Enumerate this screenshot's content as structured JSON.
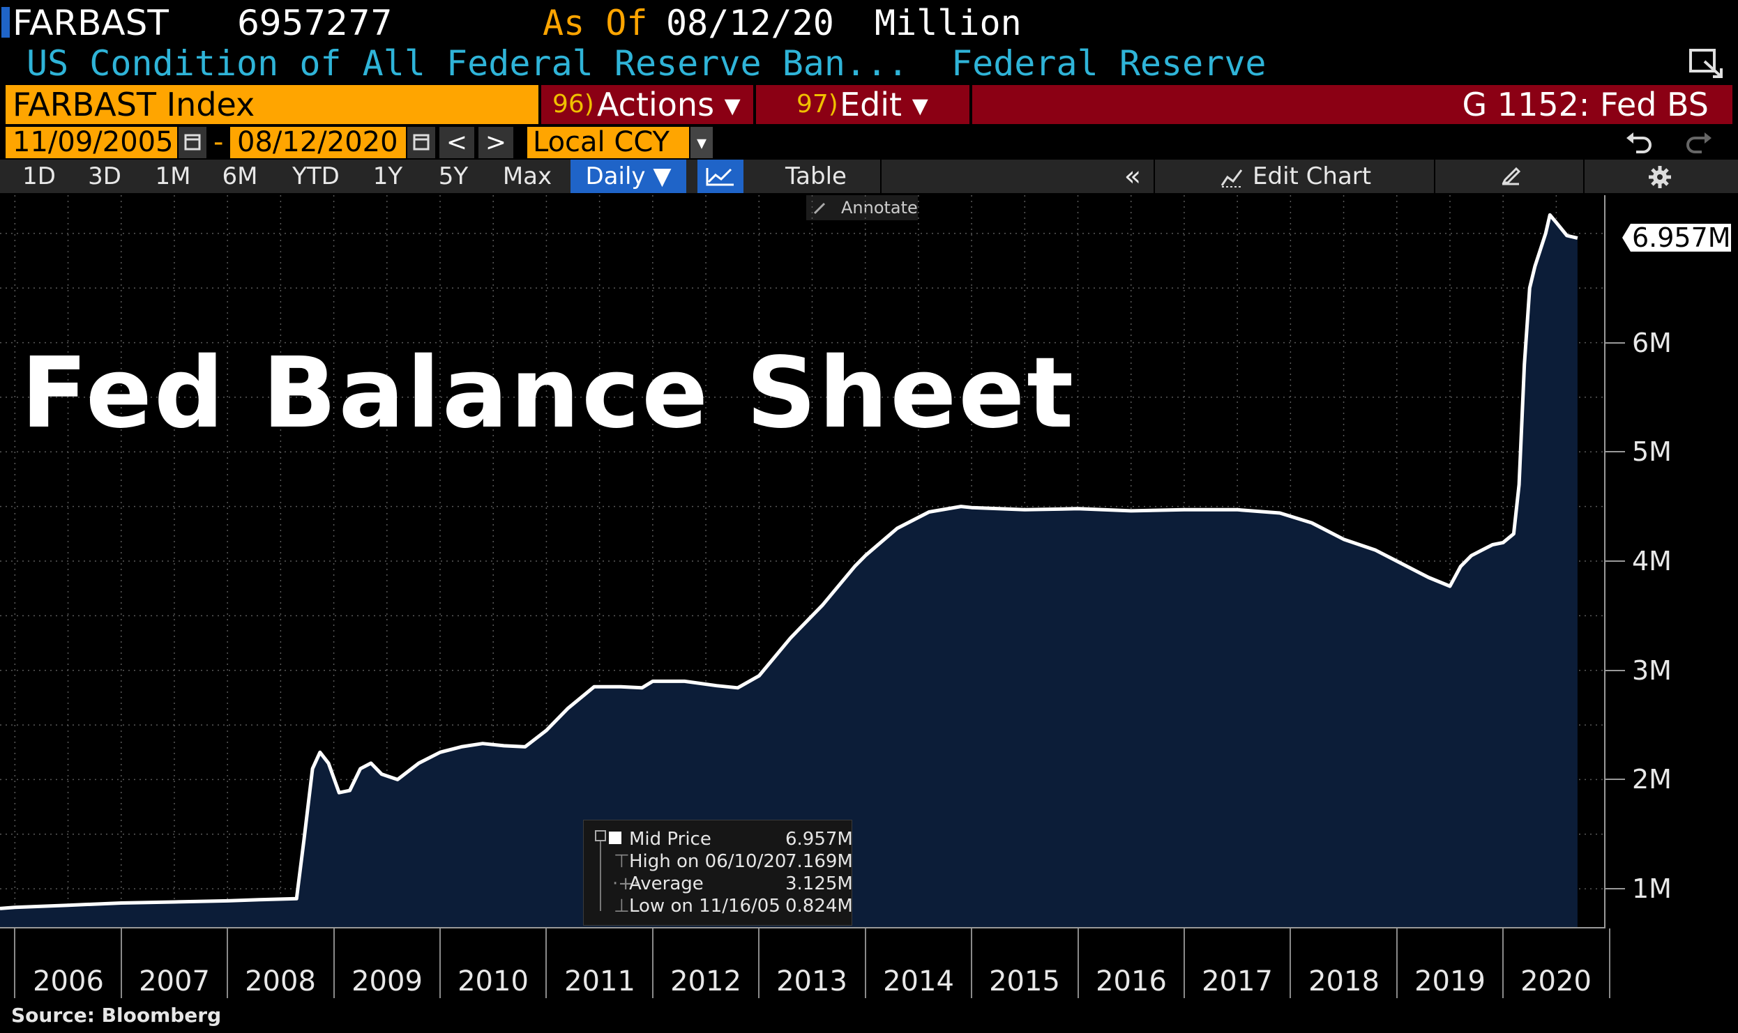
{
  "header": {
    "ticker": "FARBAST",
    "last_value": "6957277",
    "as_of_label": "As Of",
    "as_of_date": "08/12/20",
    "units": "Million",
    "description": "US Condition of All Federal Reserve Ban...",
    "source_name": "Federal Reserve"
  },
  "command_bar": {
    "security": "FARBAST Index",
    "actions_num": "96)",
    "actions_label": "Actions ▾",
    "edit_num": "97)",
    "edit_label": "Edit ▾",
    "function_label": "G 1152: Fed BS"
  },
  "date_bar": {
    "start_date": "11/09/2005",
    "dash": "-",
    "end_date": "08/12/2020",
    "prev": "<",
    "next": ">",
    "currency": "Local CCY",
    "currency_caret": "▾"
  },
  "toolbar": {
    "ranges": [
      "1D",
      "3D",
      "1M",
      "6M",
      "YTD",
      "1Y",
      "5Y",
      "Max"
    ],
    "frequency": "Daily ▼",
    "table_label": "Table",
    "collapse_glyph": "«",
    "edit_chart_label": "Edit Chart",
    "annotate_label": "Annotate"
  },
  "overlay_title": "Fed Balance Sheet",
  "last_value_label": "6.957M",
  "source_footer": "Source: Bloomberg",
  "legend": {
    "rows": [
      {
        "label": "Mid Price",
        "value": "6.957M"
      },
      {
        "label": "High on 06/10/20",
        "value": "7.169M"
      },
      {
        "label": "Average",
        "value": "3.125M"
      },
      {
        "label": "Low on 11/16/05",
        "value": "0.824M"
      }
    ]
  },
  "colors": {
    "background": "#000000",
    "area_fill": "#0c1d38",
    "line": "#ffffff",
    "accent_orange": "#ffa500",
    "accent_red": "#8b0014",
    "accent_blue": "#1f64c8",
    "cyan_text": "#2fb4d8"
  },
  "chart_data": {
    "type": "area",
    "title": "Fed Balance Sheet",
    "xlabel": "",
    "ylabel": "",
    "x_ticks": [
      "2006",
      "2007",
      "2008",
      "2009",
      "2010",
      "2011",
      "2012",
      "2013",
      "2014",
      "2015",
      "2016",
      "2017",
      "2018",
      "2019",
      "2020"
    ],
    "y_ticks": [
      "1M",
      "2M",
      "3M",
      "4M",
      "5M",
      "6M"
    ],
    "ylim": [
      0.65,
      7.35
    ],
    "xlim": [
      2005.86,
      2020.95
    ],
    "grid": true,
    "series": [
      {
        "name": "Mid Price",
        "x": [
          2005.86,
          2006.0,
          2006.5,
          2007.0,
          2007.5,
          2008.0,
          2008.3,
          2008.65,
          2008.72,
          2008.8,
          2008.87,
          2008.95,
          2009.05,
          2009.15,
          2009.25,
          2009.35,
          2009.45,
          2009.6,
          2009.8,
          2010.0,
          2010.2,
          2010.4,
          2010.6,
          2010.8,
          2011.0,
          2011.2,
          2011.45,
          2011.7,
          2011.9,
          2012.0,
          2012.3,
          2012.6,
          2012.8,
          2013.0,
          2013.3,
          2013.6,
          2013.9,
          2014.0,
          2014.3,
          2014.6,
          2014.9,
          2015.0,
          2015.5,
          2016.0,
          2016.5,
          2017.0,
          2017.5,
          2017.9,
          2018.2,
          2018.5,
          2018.8,
          2019.0,
          2019.3,
          2019.5,
          2019.6,
          2019.7,
          2019.8,
          2019.9,
          2020.0,
          2020.1,
          2020.15,
          2020.2,
          2020.25,
          2020.3,
          2020.4,
          2020.44,
          2020.5,
          2020.6,
          2020.7
        ],
        "y": [
          0.82,
          0.83,
          0.85,
          0.87,
          0.88,
          0.89,
          0.9,
          0.91,
          1.45,
          2.1,
          2.25,
          2.15,
          1.88,
          1.9,
          2.1,
          2.15,
          2.05,
          2.0,
          2.15,
          2.25,
          2.3,
          2.33,
          2.31,
          2.3,
          2.45,
          2.65,
          2.85,
          2.85,
          2.84,
          2.9,
          2.9,
          2.86,
          2.84,
          2.95,
          3.3,
          3.6,
          3.95,
          4.05,
          4.3,
          4.45,
          4.5,
          4.49,
          4.47,
          4.48,
          4.46,
          4.47,
          4.47,
          4.44,
          4.35,
          4.2,
          4.1,
          4.0,
          3.85,
          3.77,
          3.95,
          4.05,
          4.1,
          4.15,
          4.17,
          4.25,
          4.7,
          5.8,
          6.5,
          6.7,
          7.0,
          7.169,
          7.1,
          6.98,
          6.957
        ]
      }
    ]
  }
}
